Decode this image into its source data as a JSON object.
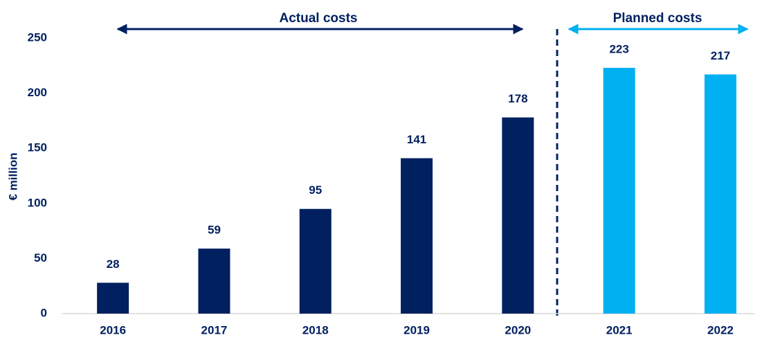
{
  "chart_data": {
    "type": "bar",
    "ylabel": "€ million",
    "categories": [
      "2016",
      "2017",
      "2018",
      "2019",
      "2020",
      "2021",
      "2022"
    ],
    "values": [
      28,
      59,
      95,
      141,
      178,
      223,
      217
    ],
    "colors": [
      "#002060",
      "#002060",
      "#002060",
      "#002060",
      "#002060",
      "#00b0f0",
      "#00b0f0"
    ],
    "ylim": [
      0,
      250
    ],
    "yticks": [
      0,
      50,
      100,
      150,
      200,
      250
    ],
    "grid": false,
    "annotations": [
      {
        "text": "Actual costs"
      },
      {
        "text": "Planned costs"
      }
    ]
  }
}
